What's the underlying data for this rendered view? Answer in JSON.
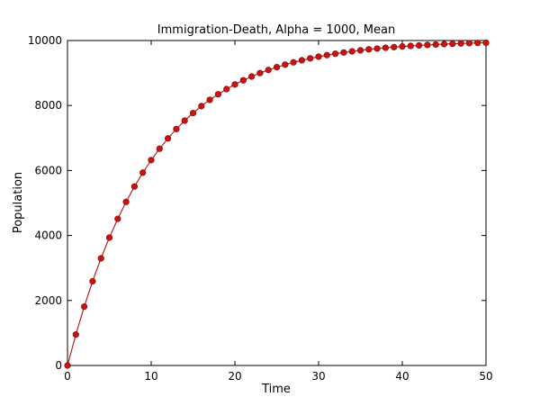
{
  "chart_data": {
    "type": "line",
    "title": "Immigration-Death, Alpha = 1000, Mean",
    "xlabel": "Time",
    "ylabel": "Population",
    "xlim": [
      0,
      50
    ],
    "ylim": [
      0,
      10000
    ],
    "xticks": [
      0,
      10,
      20,
      30,
      40,
      50
    ],
    "yticks": [
      0,
      2000,
      4000,
      6000,
      8000,
      10000
    ],
    "grid": false,
    "line_color": "#b22222",
    "marker_color": "#cc1111",
    "series": [
      {
        "x": [
          0,
          1,
          2,
          3,
          4,
          5,
          6,
          7,
          8,
          9,
          10,
          11,
          12,
          13,
          14,
          15,
          16,
          17,
          18,
          19,
          20,
          21,
          22,
          23,
          24,
          25,
          26,
          27,
          28,
          29,
          30,
          31,
          32,
          33,
          34,
          35,
          36,
          37,
          38,
          39,
          40,
          41,
          42,
          43,
          44,
          45,
          46,
          47,
          48,
          49,
          50
        ],
        "values": [
          0,
          952,
          1813,
          2592,
          3297,
          3935,
          4512,
          5034,
          5507,
          5934,
          6321,
          6671,
          6988,
          7275,
          7534,
          7769,
          7981,
          8173,
          8347,
          8504,
          8647,
          8775,
          8892,
          8997,
          9093,
          9179,
          9257,
          9328,
          9392,
          9450,
          9502,
          9550,
          9592,
          9631,
          9666,
          9698,
          9727,
          9753,
          9776,
          9798,
          9817,
          9834,
          9850,
          9864,
          9877,
          9889,
          9899,
          9909,
          9918,
          9926,
          9933
        ]
      }
    ]
  }
}
